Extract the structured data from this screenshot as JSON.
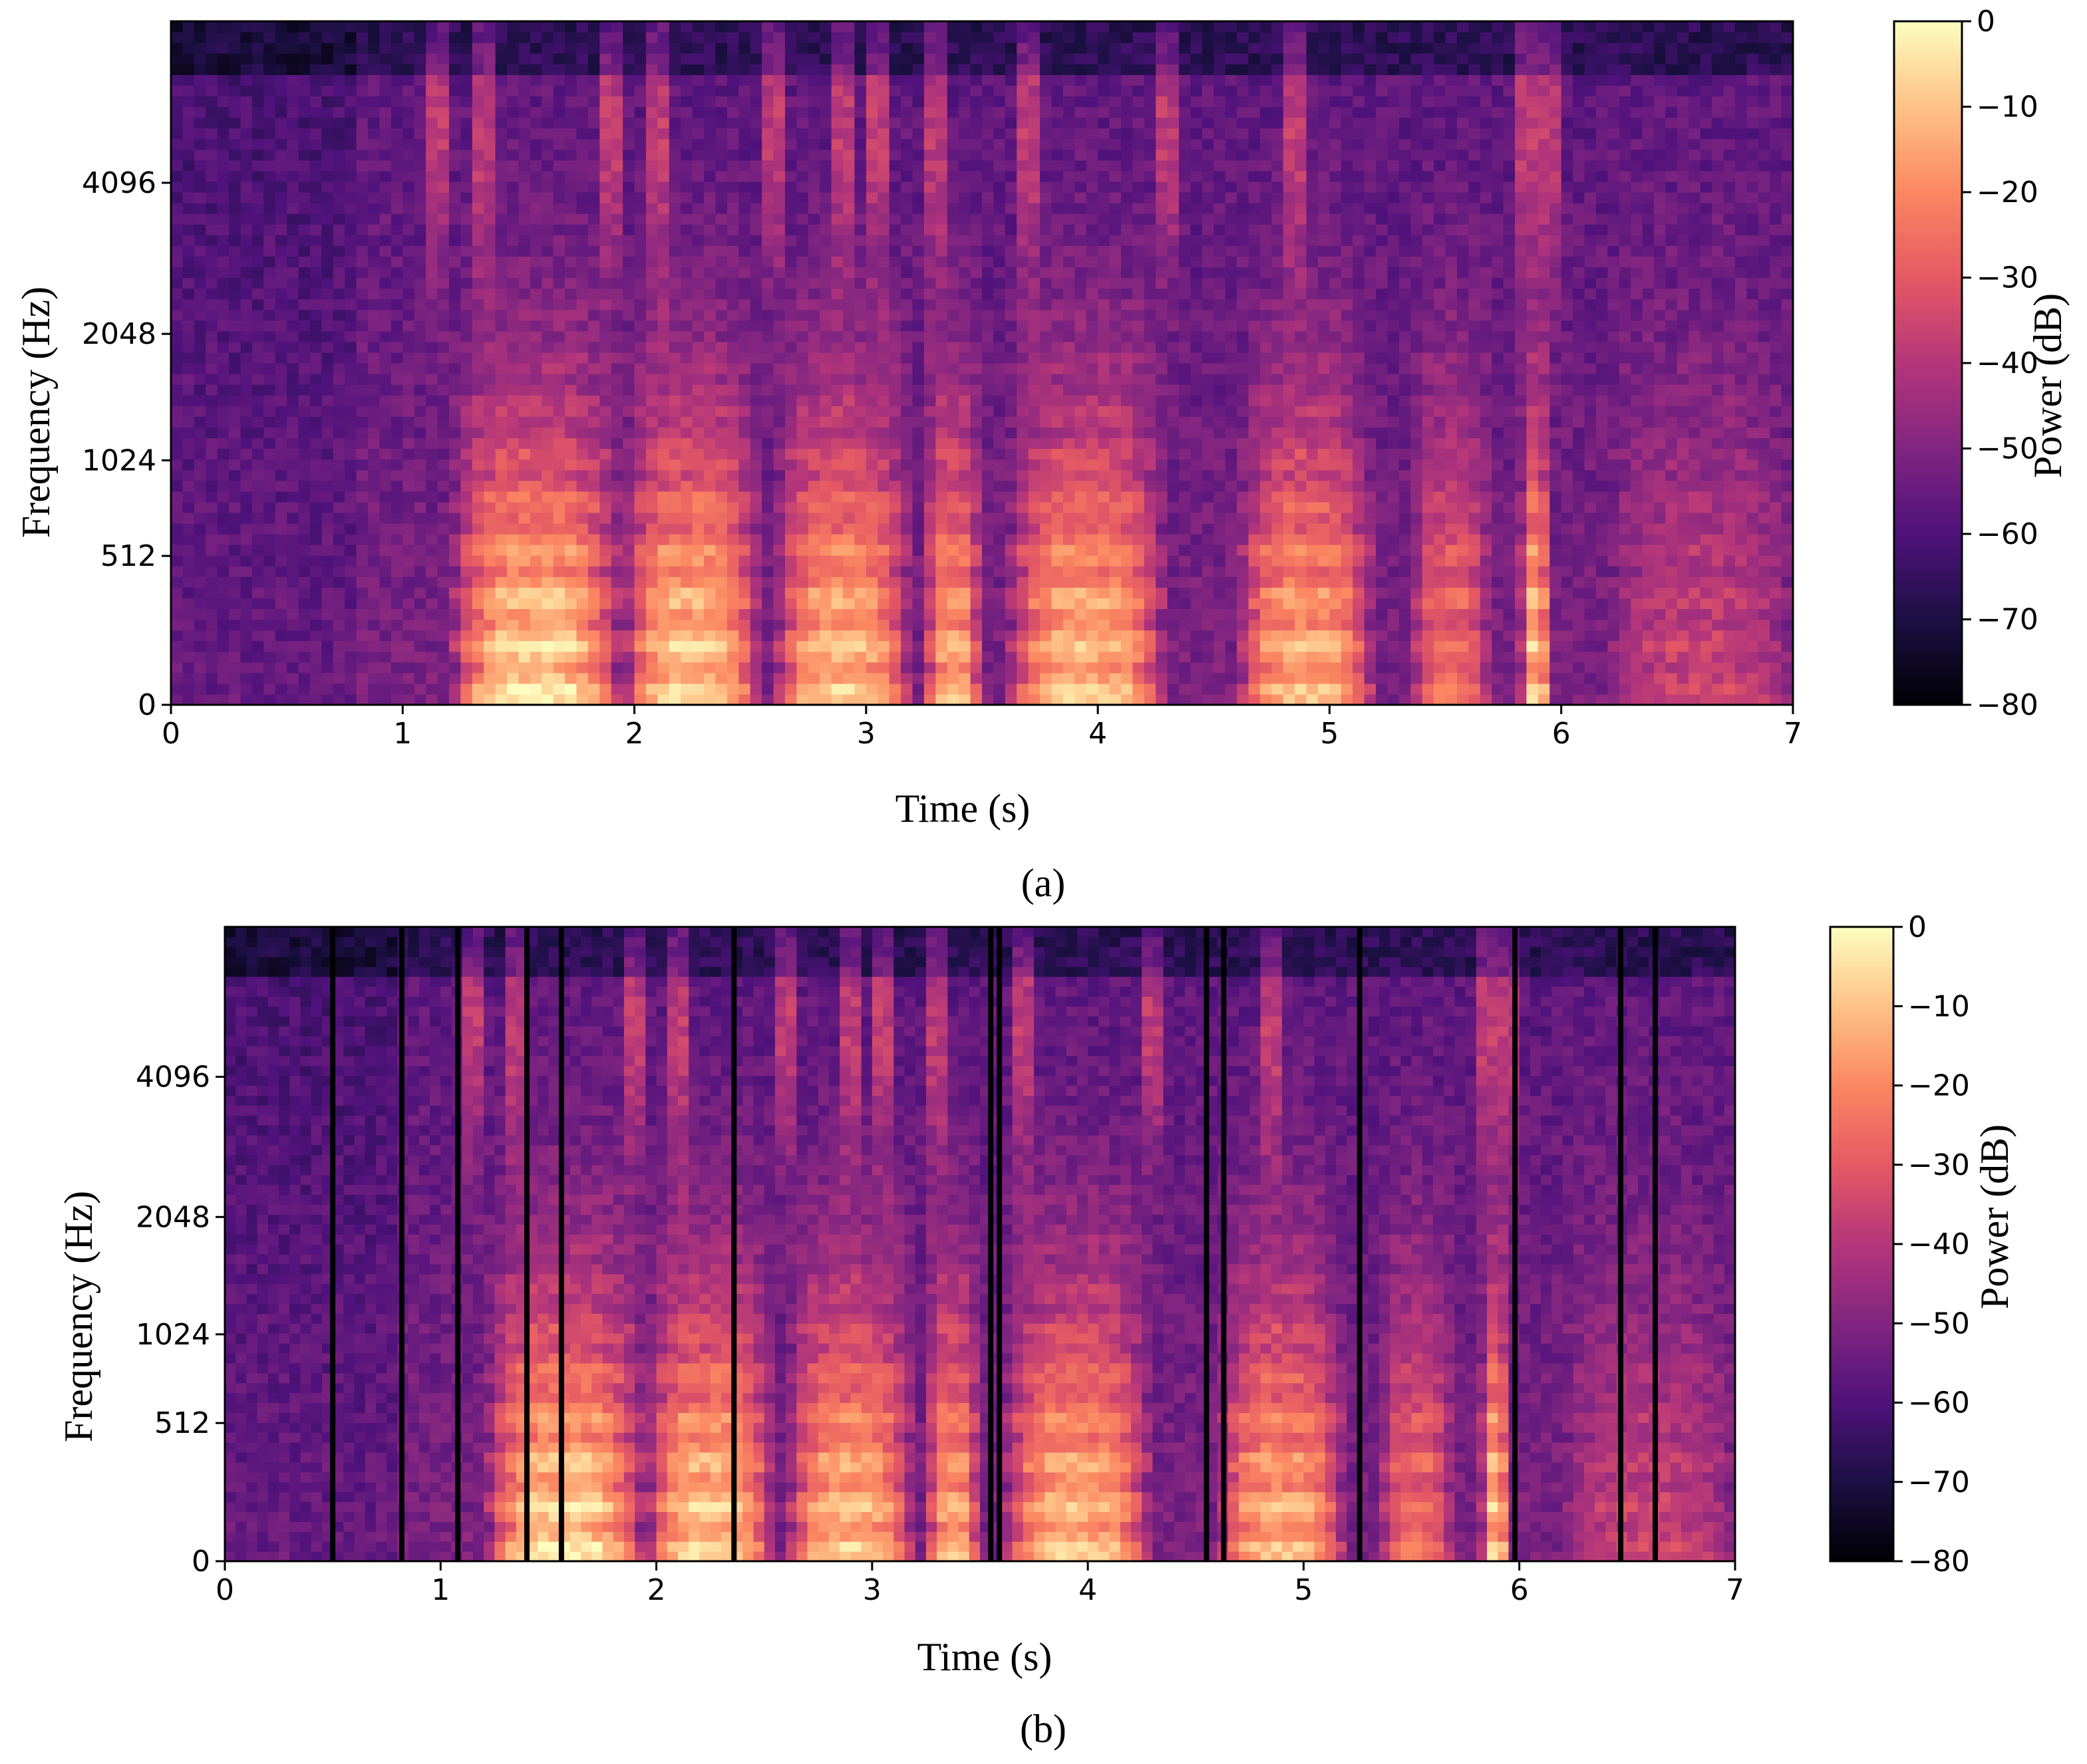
{
  "chart_data": [
    {
      "type": "heatmap",
      "panel_label": "(a)",
      "xlabel": "Time (s)",
      "ylabel": "Frequency (Hz)",
      "colorbar_label": "Power (dB)",
      "xlim": [
        0,
        7
      ],
      "x_ticks": [
        "0",
        "1",
        "2",
        "3",
        "4",
        "5",
        "6",
        "7"
      ],
      "y_ticks": [
        "0",
        "512",
        "1024",
        "2048",
        "4096"
      ],
      "y_scale": "mel",
      "colorbar_ticks": [
        "0",
        "−10",
        "−20",
        "−30",
        "−40",
        "−50",
        "−60",
        "−70",
        "−80"
      ],
      "zlim": [
        -80,
        0
      ],
      "colormap": "magma",
      "masked_time_columns_s": []
    },
    {
      "type": "heatmap",
      "panel_label": "(b)",
      "xlabel": "Time (s)",
      "ylabel": "Frequency (Hz)",
      "colorbar_label": "Power (dB)",
      "xlim": [
        0,
        7
      ],
      "x_ticks": [
        "0",
        "1",
        "2",
        "3",
        "4",
        "5",
        "6",
        "7"
      ],
      "y_ticks": [
        "0",
        "512",
        "1024",
        "2048",
        "4096"
      ],
      "y_scale": "mel",
      "colorbar_ticks": [
        "0",
        "−10",
        "−20",
        "−30",
        "−40",
        "−50",
        "−60",
        "−70",
        "−80"
      ],
      "zlim": [
        -80,
        0
      ],
      "colormap": "magma",
      "masked_time_columns_s": [
        0.5,
        0.82,
        1.08,
        1.4,
        1.56,
        2.36,
        3.55,
        3.59,
        4.55,
        4.63,
        5.26,
        5.98,
        6.47,
        6.63
      ]
    }
  ],
  "colors": {
    "magma": [
      "#000004",
      "#1c1044",
      "#4f127b",
      "#812581",
      "#b5367a",
      "#e55964",
      "#fb8761",
      "#fec287",
      "#fcfdbf"
    ]
  }
}
